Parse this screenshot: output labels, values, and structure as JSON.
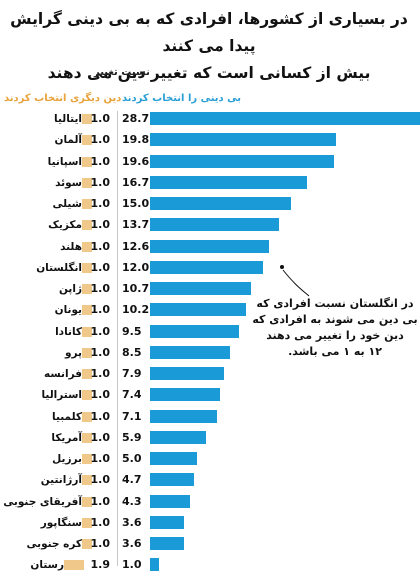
{
  "title": {
    "line1": "در بسیاری از کشورها، افرادی که به بی دینی گرایش پیدا می کنند",
    "line2": "بیش از کسانی است که تغییر دین می دهند"
  },
  "headers": {
    "ratio": "نسبت تغییر",
    "irreligion": "بی دینی را انتخاب کردند",
    "other_religion": "دین دیگری انتخاب کردند"
  },
  "note": {
    "line1": "در انگلستان نسبت افرادی که",
    "line2": "بی دین می شوند به افرادی که",
    "line3": "دین خود را تغییر می دهند",
    "line4": "۱۲ به ۱ می باشد."
  },
  "colors": {
    "irreligion": "#1a9bd7",
    "other_religion": "#f0c88a"
  },
  "chart_data": {
    "type": "bar",
    "orientation": "horizontal",
    "categories": [
      "ایتالیا",
      "آلمان",
      "اسپانیا",
      "سوئد",
      "شیلی",
      "مکزیک",
      "هلند",
      "انگلستان",
      "ژاپن",
      "یونان",
      "کانادا",
      "پرو",
      "فرانسه",
      "استرالیا",
      "کلمبیا",
      "آمریکا",
      "برزیل",
      "آرژانتین",
      "آفریقای جنوبی",
      "سنگاپور",
      "کره جنوبی",
      "مجارستان"
    ],
    "series": [
      {
        "name": "بی دینی را انتخاب کردند",
        "values": [
          28.7,
          19.8,
          19.6,
          16.7,
          15.0,
          13.7,
          12.6,
          12.0,
          10.7,
          10.2,
          9.5,
          8.5,
          7.9,
          7.4,
          7.1,
          5.9,
          5.0,
          4.7,
          4.3,
          3.6,
          3.6,
          1.0
        ]
      },
      {
        "name": "دین دیگری انتخاب کردند",
        "values": [
          1.0,
          1.0,
          1.0,
          1.0,
          1.0,
          1.0,
          1.0,
          1.0,
          1.0,
          1.0,
          1.0,
          1.0,
          1.0,
          1.0,
          1.0,
          1.0,
          1.0,
          1.0,
          1.0,
          1.0,
          1.0,
          1.9
        ]
      }
    ],
    "value_labels_irreligion": [
      "28.7",
      "19.8",
      "19.6",
      "16.7",
      "15.0",
      "13.7",
      "12.6",
      "12.0",
      "10.7",
      "10.2",
      "9.5",
      "8.5",
      "7.9",
      "7.4",
      "7.1",
      "5.9",
      "5.0",
      "4.7",
      "4.3",
      "3.6",
      "3.6",
      "1.0"
    ],
    "value_labels_other": [
      "1.0",
      "1.0",
      "1.0",
      "1.0",
      "1.0",
      "1.0",
      "1.0",
      "1.0",
      "1.0",
      "1.0",
      "1.0",
      "1.0",
      "1.0",
      "1.0",
      "1.0",
      "1.0",
      "1.0",
      "1.0",
      "1.0",
      "1.0",
      "1.0",
      "1.9"
    ],
    "xlim": [
      0,
      28.7
    ],
    "grid": false,
    "legend": "top"
  }
}
